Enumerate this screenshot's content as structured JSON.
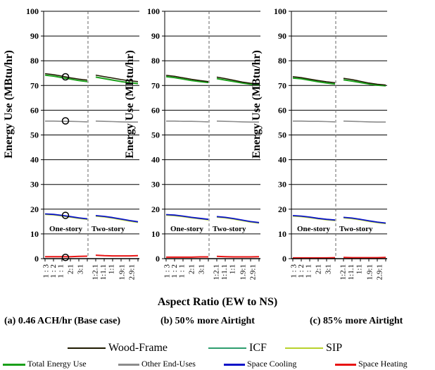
{
  "chart_data": [
    {
      "type": "line",
      "caption": "(a) 0.46 ACH/hr (Base case)",
      "ylabel": "Energy Use (MBtu/hr)",
      "xlabel": "Aspect Ratio (EW to NS)",
      "ylim": [
        0,
        100
      ],
      "yticks": [
        0,
        10,
        20,
        30,
        40,
        50,
        60,
        70,
        80,
        90,
        100
      ],
      "grid": true,
      "annotations": [
        "One-story",
        "Two-story"
      ],
      "wood_frame": {
        "total": [
          74.8,
          74.4,
          73.8,
          73.1,
          72.6,
          72.2,
          74.2,
          73.6,
          73.0,
          72.4,
          71.9,
          71.6
        ],
        "cooling": [
          18.1,
          17.9,
          17.5,
          17.0,
          16.5,
          16.1,
          17.4,
          17.1,
          16.6,
          16.0,
          15.4,
          14.9
        ],
        "heating": [
          0.8,
          0.8,
          0.8,
          0.8,
          0.9,
          1.0,
          1.4,
          1.2,
          1.1,
          1.1,
          1.1,
          1.2
        ]
      },
      "icf": {
        "total": [
          74.2,
          73.8,
          73.2,
          72.6,
          72.0,
          71.6,
          73.4,
          72.8,
          72.2,
          71.6,
          71.1,
          70.8
        ]
      },
      "other": [
        55.6,
        55.6,
        55.5,
        55.5,
        55.4,
        55.3,
        55.6,
        55.5,
        55.4,
        55.3,
        55.2,
        55.2
      ],
      "markers": [
        73.5,
        55.7,
        17.5,
        0.5
      ]
    },
    {
      "type": "line",
      "caption": "(b) 50% more Airtight",
      "ylabel": "Energy Use (MBtu/hr)",
      "xlabel": "Aspect Ratio (EW to NS)",
      "ylim": [
        0,
        100
      ],
      "yticks": [
        0,
        10,
        20,
        30,
        40,
        50,
        60,
        70,
        80,
        90,
        100
      ],
      "grid": true,
      "annotations": [
        "One-story",
        "Two-story"
      ],
      "wood_frame": {
        "total": [
          74.1,
          73.7,
          73.1,
          72.5,
          72.0,
          71.6,
          73.4,
          72.8,
          72.1,
          71.4,
          70.9,
          70.6
        ],
        "cooling": [
          17.8,
          17.6,
          17.2,
          16.7,
          16.3,
          15.9,
          17.0,
          16.7,
          16.2,
          15.6,
          15.0,
          14.6
        ],
        "heating": [
          0.6,
          0.6,
          0.6,
          0.6,
          0.7,
          0.7,
          0.9,
          0.8,
          0.7,
          0.7,
          0.7,
          0.8
        ]
      },
      "icf": {
        "total": [
          73.6,
          73.2,
          72.6,
          72.0,
          71.6,
          71.2,
          72.8,
          72.2,
          71.6,
          71.0,
          70.5,
          70.3
        ]
      },
      "other": [
        55.6,
        55.6,
        55.5,
        55.5,
        55.4,
        55.3,
        55.6,
        55.5,
        55.4,
        55.3,
        55.2,
        55.2
      ],
      "markers": []
    },
    {
      "type": "line",
      "caption": "(c) 85% more Airtight",
      "ylabel": "Energy Use (MBtu/hr)",
      "xlabel": "Aspect Ratio (EW to NS)",
      "ylim": [
        0,
        100
      ],
      "yticks": [
        0,
        10,
        20,
        30,
        40,
        50,
        60,
        70,
        80,
        90,
        100
      ],
      "grid": true,
      "annotations": [
        "One-story",
        "Two-story"
      ],
      "wood_frame": {
        "total": [
          73.6,
          73.2,
          72.6,
          72.0,
          71.5,
          71.1,
          72.9,
          72.4,
          71.7,
          71.0,
          70.5,
          70.2
        ],
        "cooling": [
          17.4,
          17.2,
          16.8,
          16.3,
          15.9,
          15.6,
          16.7,
          16.4,
          15.9,
          15.3,
          14.8,
          14.4
        ],
        "heating": [
          0.3,
          0.3,
          0.3,
          0.3,
          0.3,
          0.4,
          0.5,
          0.4,
          0.4,
          0.4,
          0.4,
          0.5
        ]
      },
      "icf": {
        "total": [
          73.0,
          72.7,
          72.1,
          71.5,
          71.0,
          70.6,
          72.3,
          71.8,
          71.2,
          70.6,
          70.1,
          69.9
        ]
      },
      "other": [
        55.6,
        55.6,
        55.5,
        55.5,
        55.4,
        55.3,
        55.6,
        55.5,
        55.4,
        55.3,
        55.2,
        55.2
      ],
      "markers": []
    }
  ],
  "categories": [
    "1 : 3",
    "1 : 2",
    "1 : 1",
    "2:1",
    "3:1",
    "",
    "1:2.1",
    "1:1.1",
    "1:1",
    "1.9:1",
    "2.9:1",
    ""
  ],
  "tick_labels_display": [
    "1 : 3",
    "1 : 2",
    "1 : 1",
    "2:1",
    "3:1",
    "1:2.1",
    "1:1.1",
    "1:1",
    "1.9:1",
    "2.9:1"
  ],
  "xlabel_text": "Aspect Ratio (EW to NS)",
  "legend_materials": [
    {
      "name": "Wood-Frame",
      "color": "#1f1a00"
    },
    {
      "name": "ICF",
      "color": "#2e9e6e"
    },
    {
      "name": "SIP",
      "color": "#b8d22c"
    }
  ],
  "legend_uses": [
    {
      "name": "Total Energy Use",
      "color": "#1aa01a"
    },
    {
      "name": "Other End-Uses",
      "color": "#8c8c8c"
    },
    {
      "name": "Space Cooling",
      "color": "#0a14c8"
    },
    {
      "name": "Space Heating",
      "color": "#e81414"
    }
  ],
  "colors": {
    "wood_frame": "#1f1a00",
    "icf": "#2e9e6e",
    "sip": "#b8d22c",
    "total": "#1aa01a",
    "other": "#8c8c8c",
    "cooling": "#0a14c8",
    "heating": "#e81414"
  }
}
